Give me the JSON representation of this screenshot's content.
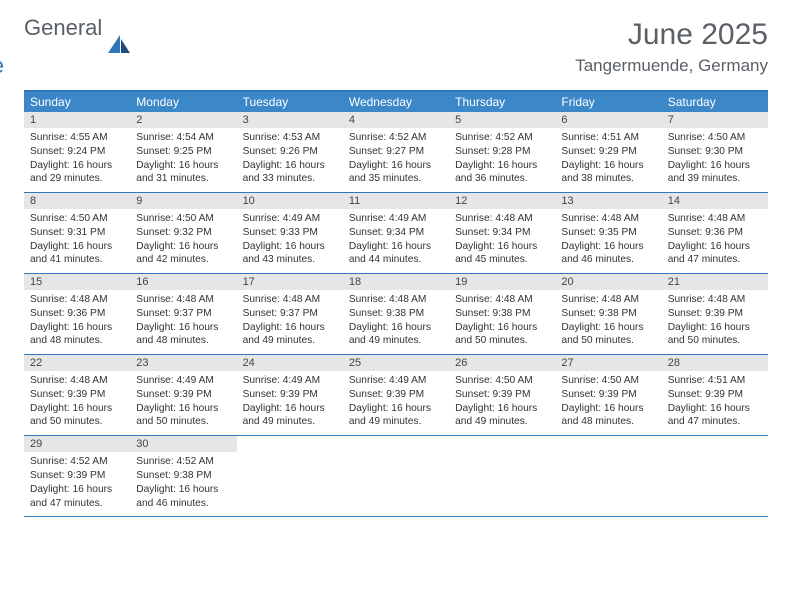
{
  "logo": {
    "text1": "General",
    "text2": "Blue"
  },
  "title": "June 2025",
  "location": "Tangermuende, Germany",
  "colors": {
    "header_bg": "#3b87c8",
    "border": "#2f77b8",
    "daynum_bg": "#e5e6e7",
    "text": "#333333",
    "title_text": "#5a6066"
  },
  "day_headers": [
    "Sunday",
    "Monday",
    "Tuesday",
    "Wednesday",
    "Thursday",
    "Friday",
    "Saturday"
  ],
  "weeks": [
    [
      {
        "n": "1",
        "sr": "Sunrise: 4:55 AM",
        "ss": "Sunset: 9:24 PM",
        "d1": "Daylight: 16 hours",
        "d2": "and 29 minutes."
      },
      {
        "n": "2",
        "sr": "Sunrise: 4:54 AM",
        "ss": "Sunset: 9:25 PM",
        "d1": "Daylight: 16 hours",
        "d2": "and 31 minutes."
      },
      {
        "n": "3",
        "sr": "Sunrise: 4:53 AM",
        "ss": "Sunset: 9:26 PM",
        "d1": "Daylight: 16 hours",
        "d2": "and 33 minutes."
      },
      {
        "n": "4",
        "sr": "Sunrise: 4:52 AM",
        "ss": "Sunset: 9:27 PM",
        "d1": "Daylight: 16 hours",
        "d2": "and 35 minutes."
      },
      {
        "n": "5",
        "sr": "Sunrise: 4:52 AM",
        "ss": "Sunset: 9:28 PM",
        "d1": "Daylight: 16 hours",
        "d2": "and 36 minutes."
      },
      {
        "n": "6",
        "sr": "Sunrise: 4:51 AM",
        "ss": "Sunset: 9:29 PM",
        "d1": "Daylight: 16 hours",
        "d2": "and 38 minutes."
      },
      {
        "n": "7",
        "sr": "Sunrise: 4:50 AM",
        "ss": "Sunset: 9:30 PM",
        "d1": "Daylight: 16 hours",
        "d2": "and 39 minutes."
      }
    ],
    [
      {
        "n": "8",
        "sr": "Sunrise: 4:50 AM",
        "ss": "Sunset: 9:31 PM",
        "d1": "Daylight: 16 hours",
        "d2": "and 41 minutes."
      },
      {
        "n": "9",
        "sr": "Sunrise: 4:50 AM",
        "ss": "Sunset: 9:32 PM",
        "d1": "Daylight: 16 hours",
        "d2": "and 42 minutes."
      },
      {
        "n": "10",
        "sr": "Sunrise: 4:49 AM",
        "ss": "Sunset: 9:33 PM",
        "d1": "Daylight: 16 hours",
        "d2": "and 43 minutes."
      },
      {
        "n": "11",
        "sr": "Sunrise: 4:49 AM",
        "ss": "Sunset: 9:34 PM",
        "d1": "Daylight: 16 hours",
        "d2": "and 44 minutes."
      },
      {
        "n": "12",
        "sr": "Sunrise: 4:48 AM",
        "ss": "Sunset: 9:34 PM",
        "d1": "Daylight: 16 hours",
        "d2": "and 45 minutes."
      },
      {
        "n": "13",
        "sr": "Sunrise: 4:48 AM",
        "ss": "Sunset: 9:35 PM",
        "d1": "Daylight: 16 hours",
        "d2": "and 46 minutes."
      },
      {
        "n": "14",
        "sr": "Sunrise: 4:48 AM",
        "ss": "Sunset: 9:36 PM",
        "d1": "Daylight: 16 hours",
        "d2": "and 47 minutes."
      }
    ],
    [
      {
        "n": "15",
        "sr": "Sunrise: 4:48 AM",
        "ss": "Sunset: 9:36 PM",
        "d1": "Daylight: 16 hours",
        "d2": "and 48 minutes."
      },
      {
        "n": "16",
        "sr": "Sunrise: 4:48 AM",
        "ss": "Sunset: 9:37 PM",
        "d1": "Daylight: 16 hours",
        "d2": "and 48 minutes."
      },
      {
        "n": "17",
        "sr": "Sunrise: 4:48 AM",
        "ss": "Sunset: 9:37 PM",
        "d1": "Daylight: 16 hours",
        "d2": "and 49 minutes."
      },
      {
        "n": "18",
        "sr": "Sunrise: 4:48 AM",
        "ss": "Sunset: 9:38 PM",
        "d1": "Daylight: 16 hours",
        "d2": "and 49 minutes."
      },
      {
        "n": "19",
        "sr": "Sunrise: 4:48 AM",
        "ss": "Sunset: 9:38 PM",
        "d1": "Daylight: 16 hours",
        "d2": "and 50 minutes."
      },
      {
        "n": "20",
        "sr": "Sunrise: 4:48 AM",
        "ss": "Sunset: 9:38 PM",
        "d1": "Daylight: 16 hours",
        "d2": "and 50 minutes."
      },
      {
        "n": "21",
        "sr": "Sunrise: 4:48 AM",
        "ss": "Sunset: 9:39 PM",
        "d1": "Daylight: 16 hours",
        "d2": "and 50 minutes."
      }
    ],
    [
      {
        "n": "22",
        "sr": "Sunrise: 4:48 AM",
        "ss": "Sunset: 9:39 PM",
        "d1": "Daylight: 16 hours",
        "d2": "and 50 minutes."
      },
      {
        "n": "23",
        "sr": "Sunrise: 4:49 AM",
        "ss": "Sunset: 9:39 PM",
        "d1": "Daylight: 16 hours",
        "d2": "and 50 minutes."
      },
      {
        "n": "24",
        "sr": "Sunrise: 4:49 AM",
        "ss": "Sunset: 9:39 PM",
        "d1": "Daylight: 16 hours",
        "d2": "and 49 minutes."
      },
      {
        "n": "25",
        "sr": "Sunrise: 4:49 AM",
        "ss": "Sunset: 9:39 PM",
        "d1": "Daylight: 16 hours",
        "d2": "and 49 minutes."
      },
      {
        "n": "26",
        "sr": "Sunrise: 4:50 AM",
        "ss": "Sunset: 9:39 PM",
        "d1": "Daylight: 16 hours",
        "d2": "and 49 minutes."
      },
      {
        "n": "27",
        "sr": "Sunrise: 4:50 AM",
        "ss": "Sunset: 9:39 PM",
        "d1": "Daylight: 16 hours",
        "d2": "and 48 minutes."
      },
      {
        "n": "28",
        "sr": "Sunrise: 4:51 AM",
        "ss": "Sunset: 9:39 PM",
        "d1": "Daylight: 16 hours",
        "d2": "and 47 minutes."
      }
    ],
    [
      {
        "n": "29",
        "sr": "Sunrise: 4:52 AM",
        "ss": "Sunset: 9:39 PM",
        "d1": "Daylight: 16 hours",
        "d2": "and 47 minutes."
      },
      {
        "n": "30",
        "sr": "Sunrise: 4:52 AM",
        "ss": "Sunset: 9:38 PM",
        "d1": "Daylight: 16 hours",
        "d2": "and 46 minutes."
      },
      {
        "empty": true
      },
      {
        "empty": true
      },
      {
        "empty": true
      },
      {
        "empty": true
      },
      {
        "empty": true
      }
    ]
  ]
}
